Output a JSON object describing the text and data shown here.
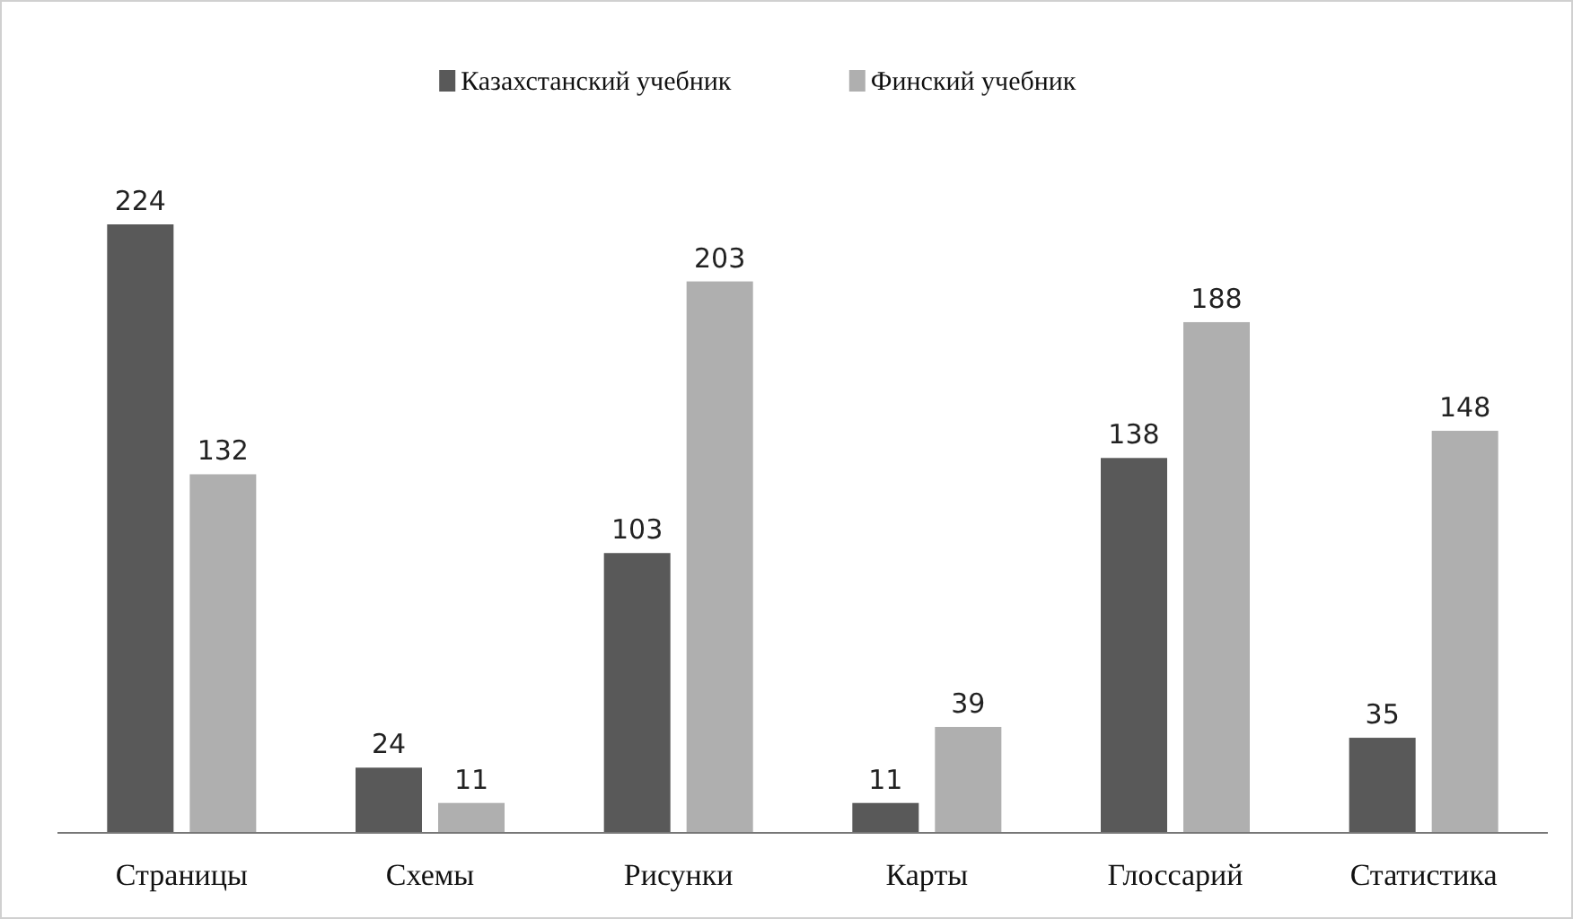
{
  "chart_data": {
    "type": "bar",
    "categories": [
      "Страницы",
      "Схемы",
      "Рисунки",
      "Карты",
      "Глоссарий",
      "Статистика"
    ],
    "series": [
      {
        "name": "Казахстанский учебник",
        "color": "#595959",
        "values": [
          224,
          24,
          103,
          11,
          138,
          35
        ]
      },
      {
        "name": "Финский учебник",
        "color": "#afafaf",
        "values": [
          132,
          11,
          203,
          39,
          188,
          148
        ]
      }
    ],
    "data_labels": true,
    "legend": "top",
    "grid": false
  }
}
